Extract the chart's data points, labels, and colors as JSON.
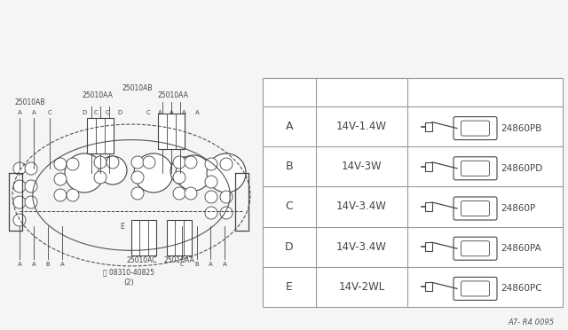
{
  "bg_color": "#f5f5f5",
  "table_rows": [
    {
      "label": "A",
      "spec": "14V-1.4W",
      "part": "24860PB"
    },
    {
      "label": "B",
      "spec": "14V-3W",
      "part": "24860PD"
    },
    {
      "label": "C",
      "spec": "14V-3.4W",
      "part": "24860P"
    },
    {
      "label": "D",
      "spec": "14V-3.4W",
      "part": "24860PA"
    },
    {
      "label": "E",
      "spec": "14V-2WL",
      "part": "24860PC"
    }
  ],
  "line_color": "#999999",
  "text_color": "#555555",
  "dark_color": "#444444",
  "footer_text": "A7- R4 0095"
}
